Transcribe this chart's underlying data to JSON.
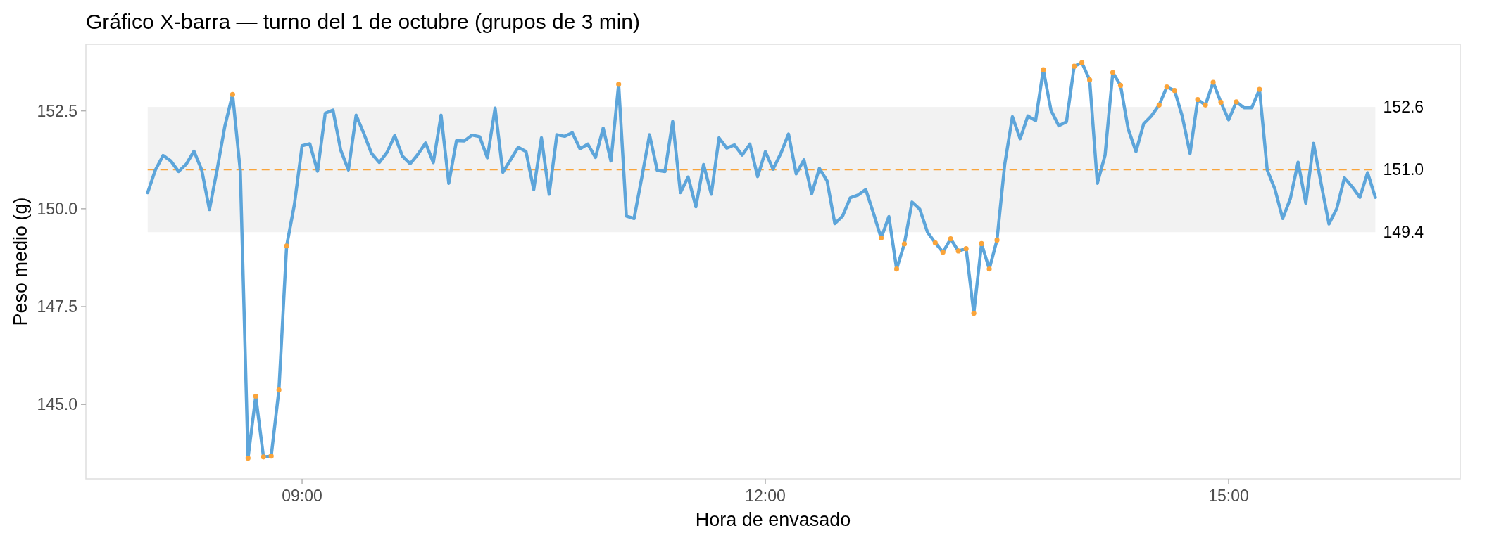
{
  "chart_data": {
    "type": "line",
    "title": "Gráfico X-barra — turno del 1 de octubre (grupos de 3 min)",
    "xlabel": "Hora de envasado",
    "ylabel": "Peso medio (g)",
    "xlim": [
      7.6,
      16.5
    ],
    "xticks": [
      {
        "value": 9,
        "label": "09:00"
      },
      {
        "value": 12,
        "label": "12:00"
      },
      {
        "value": 15,
        "label": "15:00"
      }
    ],
    "ylim": [
      143.1,
      154.2
    ],
    "yticks": [
      {
        "value": 145,
        "label": "145.0"
      },
      147.5,
      {
        "value": 150,
        "label": "150.0"
      },
      152.5
    ],
    "bands": [
      {
        "axis": "y",
        "from": 149.4,
        "to": 152.6,
        "color": "#f2f2f2"
      }
    ],
    "ref_lines": [
      {
        "axis": "y",
        "value": 151.0,
        "label": "151.0",
        "color": "#faa43a",
        "line_style": "dashed"
      }
    ],
    "annotations": [
      {
        "text": "152.6",
        "x": 15.95,
        "y": 152.6
      },
      {
        "text": "149.4",
        "x": 15.95,
        "y": 149.4
      }
    ],
    "series": [
      {
        "type": "line",
        "color": "#5da5da",
        "x": [
          8,
          8.05,
          8.1,
          8.15,
          8.2,
          8.25,
          8.3,
          8.35,
          8.4,
          8.45,
          8.5,
          8.55,
          8.6,
          8.65,
          8.7,
          8.75,
          8.8,
          8.85,
          8.9,
          8.95,
          9,
          9.05,
          9.1,
          9.15,
          9.2,
          9.25,
          9.3,
          9.35,
          9.4,
          9.45,
          9.5,
          9.55,
          9.6,
          9.65,
          9.7,
          9.75,
          9.8,
          9.85,
          9.9,
          9.95,
          10,
          10.05,
          10.1,
          10.15,
          10.2,
          10.25,
          10.3,
          10.35,
          10.4,
          10.45,
          10.5,
          10.55,
          10.6,
          10.65,
          10.7,
          10.75,
          10.8,
          10.85,
          10.9,
          10.95,
          11,
          11.05,
          11.1,
          11.15,
          11.2,
          11.25,
          11.3,
          11.35,
          11.4,
          11.45,
          11.5,
          11.55,
          11.6,
          11.65,
          11.7,
          11.75,
          11.8,
          11.85,
          11.9,
          11.95,
          12,
          12.05,
          12.1,
          12.15,
          12.2,
          12.25,
          12.3,
          12.35,
          12.4,
          12.45,
          12.5,
          12.55,
          12.6,
          12.65,
          12.7,
          12.75,
          12.8,
          12.85,
          12.9,
          12.95,
          13,
          13.05,
          13.1,
          13.15,
          13.2,
          13.25,
          13.3,
          13.35,
          13.4,
          13.45,
          13.5,
          13.55,
          13.6,
          13.65,
          13.7,
          13.75,
          13.8,
          13.85,
          13.9,
          13.95,
          14,
          14.05,
          14.1,
          14.15,
          14.2,
          14.25,
          14.3,
          14.35,
          14.4,
          14.45,
          14.5,
          14.55,
          14.6,
          14.65,
          14.7,
          14.75,
          14.8,
          14.85,
          14.9,
          14.95,
          15,
          15.05,
          15.1,
          15.15,
          15.2,
          15.25,
          15.3,
          15.35,
          15.4,
          15.45,
          15.5,
          15.55,
          15.6,
          15.65,
          15.7,
          15.75,
          15.8,
          15.85,
          15.9,
          15.95
        ],
        "values": [
          150.41,
          150.99,
          151.36,
          151.22,
          150.95,
          151.14,
          151.47,
          150.99,
          149.98,
          151.0,
          152.11,
          152.92,
          150.96,
          143.63,
          145.21,
          143.66,
          143.68,
          145.37,
          149.05,
          150.1,
          151.61,
          151.66,
          150.96,
          152.44,
          152.52,
          151.5,
          150.99,
          152.39,
          151.92,
          151.41,
          151.18,
          151.44,
          151.87,
          151.34,
          151.15,
          151.39,
          151.68,
          151.18,
          152.39,
          150.65,
          151.74,
          151.73,
          151.88,
          151.84,
          151.3,
          152.57,
          150.93,
          151.25,
          151.57,
          151.46,
          150.49,
          151.81,
          150.37,
          151.89,
          151.85,
          151.94,
          151.53,
          151.65,
          151.31,
          152.06,
          151.22,
          153.18,
          149.81,
          149.75,
          150.8,
          151.89,
          150.98,
          150.95,
          152.23,
          150.41,
          150.81,
          150.05,
          151.13,
          150.37,
          151.81,
          151.55,
          151.63,
          151.37,
          151.65,
          150.82,
          151.46,
          151.01,
          151.41,
          151.91,
          150.89,
          151.25,
          150.38,
          151.03,
          150.71,
          149.62,
          149.81,
          150.28,
          150.35,
          150.49,
          149.89,
          149.25,
          149.8,
          148.46,
          149.1,
          150.17,
          149.99,
          149.4,
          149.13,
          148.89,
          149.23,
          148.92,
          148.98,
          147.33,
          149.11,
          148.46,
          149.2,
          151.13,
          152.35,
          151.79,
          152.37,
          152.25,
          153.55,
          152.51,
          152.12,
          152.22,
          153.64,
          153.73,
          153.29,
          150.65,
          151.37,
          153.48,
          153.15,
          152.03,
          151.46,
          152.17,
          152.37,
          152.65,
          153.11,
          153.02,
          152.36,
          151.41,
          152.79,
          152.65,
          153.23,
          152.72,
          152.27,
          152.73,
          152.58,
          152.58,
          153.05,
          150.99,
          150.5,
          149.75,
          150.26,
          151.19,
          150.14,
          151.67,
          150.62,
          149.61,
          150.0,
          150.79,
          150.56,
          150.29,
          150.92,
          150.29
        ]
      },
      {
        "type": "scatter",
        "color": "#faa43a",
        "marker": "circle",
        "x": [
          8.55,
          8.65,
          8.7,
          8.75,
          8.8,
          8.85,
          8.9,
          11.05,
          12.75,
          12.85,
          12.9,
          13.1,
          13.15,
          13.2,
          13.25,
          13.3,
          13.35,
          13.4,
          13.45,
          13.5,
          13.8,
          14,
          14.05,
          14.1,
          14.25,
          14.3,
          14.55,
          14.6,
          14.65,
          14.8,
          14.85,
          14.9,
          14.95,
          15.05,
          15.2
        ],
        "values": [
          152.92,
          143.63,
          145.21,
          143.66,
          143.68,
          145.37,
          149.05,
          153.18,
          149.25,
          148.46,
          149.1,
          149.13,
          148.89,
          149.23,
          148.92,
          148.98,
          147.33,
          149.11,
          148.46,
          149.2,
          153.55,
          153.64,
          153.73,
          153.29,
          153.48,
          153.15,
          152.65,
          153.11,
          153.02,
          152.79,
          152.65,
          153.23,
          152.72,
          152.73,
          153.05
        ]
      }
    ]
  }
}
